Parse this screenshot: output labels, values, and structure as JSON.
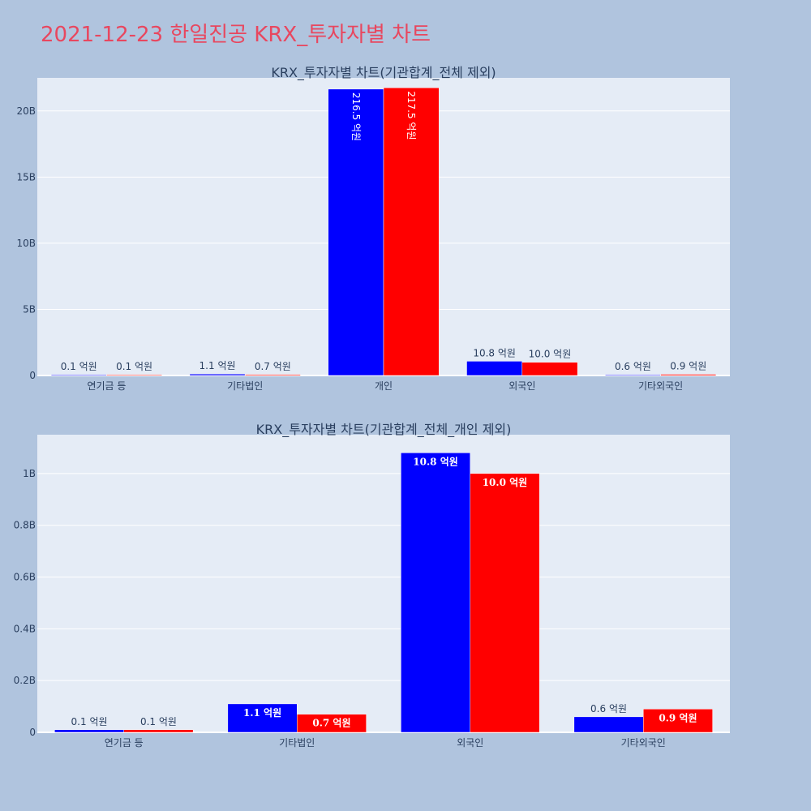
{
  "page": {
    "title": "2021-12-23 한일진공 KRX_투자자별 차트"
  },
  "colors": {
    "background": "#b0c4de",
    "plot_bg": "#e5ecf6",
    "buy": "#0000ff",
    "sell": "#ff0000",
    "title": "#e8475f",
    "text": "#2a3f5f"
  },
  "chart_data": [
    {
      "type": "bar",
      "title": "KRX_투자자별 차트(기관합계_전체 제외)",
      "categories": [
        "연기금 등",
        "기타법인",
        "개인",
        "외국인",
        "기타외국인"
      ],
      "ylim": [
        0,
        22.5
      ],
      "yticks": [
        0,
        5,
        10,
        15,
        20
      ],
      "ytick_labels": [
        "0",
        "5B",
        "10B",
        "15B",
        "20B"
      ],
      "grid": true,
      "series": [
        {
          "color": "#0000ff",
          "values": [
            0.01,
            0.11,
            21.65,
            1.08,
            0.06
          ],
          "labels": [
            "0.1 억원",
            "1.1 억원",
            "216.5 억원",
            "10.8 억원",
            "0.6 억원"
          ]
        },
        {
          "color": "#ff0000",
          "values": [
            0.01,
            0.07,
            21.75,
            1.0,
            0.09
          ],
          "labels": [
            "0.1 억원",
            "0.7 억원",
            "217.5 억원",
            "10.0 억원",
            "0.9 억원"
          ]
        }
      ]
    },
    {
      "type": "bar",
      "title": "KRX_투자자별 차트(기관합계_전체_개인 제외)",
      "categories": [
        "연기금 등",
        "기타법인",
        "외국인",
        "기타외국인"
      ],
      "ylim": [
        0,
        1.15
      ],
      "yticks": [
        0,
        0.2,
        0.4,
        0.6,
        0.8,
        1.0
      ],
      "ytick_labels": [
        "0",
        "0.2B",
        "0.4B",
        "0.6B",
        "0.8B",
        "1B"
      ],
      "grid": true,
      "series": [
        {
          "color": "#0000ff",
          "values": [
            0.01,
            0.11,
            1.08,
            0.06
          ],
          "labels": [
            "0.1 억원",
            "1.1 억원",
            "10.8 억원",
            "0.6 억원"
          ]
        },
        {
          "color": "#ff0000",
          "values": [
            0.01,
            0.07,
            1.0,
            0.09
          ],
          "labels": [
            "0.1 억원",
            "0.7 억원",
            "10.0 억원",
            "0.9 억원"
          ]
        }
      ]
    }
  ]
}
